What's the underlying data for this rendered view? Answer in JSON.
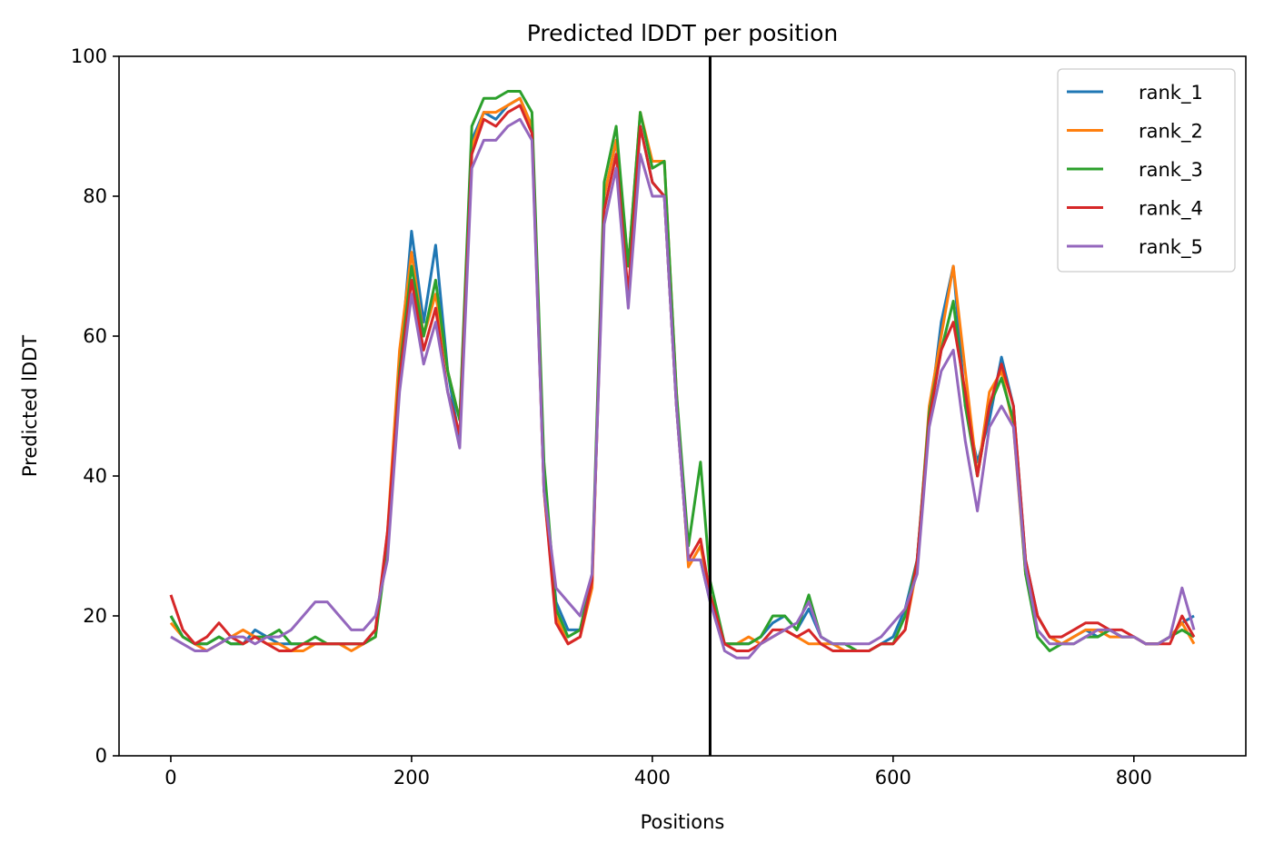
{
  "chart_data": {
    "type": "line",
    "title": "Predicted lDDT per position",
    "xlabel": "Positions",
    "ylabel": "Predicted lDDT",
    "xlim": [
      -43,
      893
    ],
    "ylim": [
      0,
      100
    ],
    "xticks": [
      0,
      200,
      400,
      600,
      800
    ],
    "yticks": [
      0,
      20,
      40,
      60,
      80,
      100
    ],
    "grid": false,
    "legend_position": "top-right",
    "vline_x": 448,
    "vline_color": "#000000",
    "x": [
      0,
      10,
      20,
      30,
      40,
      50,
      60,
      70,
      80,
      90,
      100,
      110,
      120,
      130,
      140,
      150,
      160,
      170,
      180,
      190,
      200,
      210,
      220,
      230,
      240,
      250,
      260,
      270,
      280,
      290,
      300,
      310,
      320,
      330,
      340,
      350,
      360,
      370,
      380,
      390,
      400,
      410,
      420,
      430,
      440,
      448,
      460,
      470,
      480,
      490,
      500,
      510,
      520,
      530,
      540,
      550,
      560,
      570,
      580,
      590,
      600,
      610,
      620,
      630,
      640,
      650,
      660,
      670,
      680,
      690,
      700,
      710,
      720,
      730,
      740,
      750,
      760,
      770,
      780,
      790,
      800,
      810,
      820,
      830,
      840,
      850
    ],
    "series": [
      {
        "name": "rank_1",
        "color": "#1f77b4",
        "values": [
          20,
          17,
          16,
          16,
          17,
          16,
          16,
          18,
          17,
          16,
          16,
          16,
          16,
          16,
          16,
          16,
          16,
          18,
          30,
          55,
          75,
          62,
          73,
          55,
          45,
          88,
          92,
          91,
          93,
          94,
          90,
          40,
          22,
          18,
          18,
          25,
          80,
          88,
          65,
          90,
          82,
          80,
          50,
          28,
          28,
          22,
          16,
          16,
          16,
          17,
          19,
          20,
          18,
          21,
          17,
          16,
          16,
          15,
          15,
          16,
          17,
          21,
          28,
          48,
          62,
          70,
          50,
          42,
          48,
          57,
          50,
          28,
          20,
          17,
          16,
          17,
          18,
          17,
          18,
          17,
          17,
          16,
          16,
          17,
          19,
          20
        ]
      },
      {
        "name": "rank_2",
        "color": "#ff7f0e",
        "values": [
          19,
          17,
          16,
          15,
          16,
          17,
          18,
          17,
          16,
          16,
          15,
          15,
          16,
          16,
          16,
          15,
          16,
          17,
          32,
          58,
          72,
          60,
          66,
          55,
          48,
          87,
          92,
          92,
          93,
          94,
          90,
          38,
          20,
          16,
          17,
          24,
          80,
          88,
          70,
          92,
          85,
          85,
          52,
          27,
          30,
          23,
          16,
          16,
          17,
          16,
          17,
          18,
          17,
          16,
          16,
          16,
          15,
          15,
          15,
          16,
          16,
          18,
          27,
          50,
          60,
          70,
          55,
          40,
          52,
          55,
          47,
          26,
          20,
          17,
          16,
          17,
          18,
          18,
          17,
          17,
          17,
          16,
          16,
          17,
          19,
          16
        ]
      },
      {
        "name": "rank_3",
        "color": "#2ca02c",
        "values": [
          20,
          17,
          16,
          16,
          17,
          16,
          16,
          17,
          17,
          18,
          16,
          16,
          17,
          16,
          16,
          16,
          16,
          17,
          30,
          55,
          70,
          60,
          68,
          55,
          48,
          90,
          94,
          94,
          95,
          95,
          92,
          42,
          21,
          17,
          18,
          26,
          82,
          90,
          70,
          92,
          84,
          85,
          52,
          30,
          42,
          25,
          16,
          16,
          16,
          17,
          20,
          20,
          18,
          23,
          17,
          16,
          16,
          15,
          15,
          16,
          16,
          20,
          28,
          49,
          58,
          65,
          50,
          40,
          50,
          54,
          48,
          26,
          17,
          15,
          16,
          16,
          17,
          17,
          18,
          17,
          17,
          16,
          16,
          17,
          18,
          17
        ]
      },
      {
        "name": "rank_4",
        "color": "#d62728",
        "values": [
          23,
          18,
          16,
          17,
          19,
          17,
          16,
          17,
          16,
          15,
          15,
          16,
          16,
          16,
          16,
          16,
          16,
          18,
          32,
          54,
          68,
          58,
          64,
          52,
          46,
          86,
          91,
          90,
          92,
          93,
          89,
          38,
          19,
          16,
          17,
          25,
          78,
          86,
          66,
          90,
          82,
          80,
          50,
          28,
          31,
          23,
          16,
          15,
          15,
          16,
          18,
          18,
          17,
          18,
          16,
          15,
          15,
          15,
          15,
          16,
          16,
          18,
          28,
          48,
          58,
          62,
          52,
          40,
          50,
          56,
          50,
          28,
          20,
          17,
          17,
          18,
          19,
          19,
          18,
          18,
          17,
          16,
          16,
          16,
          20,
          17
        ]
      },
      {
        "name": "rank_5",
        "color": "#9467bd",
        "values": [
          17,
          16,
          15,
          15,
          16,
          17,
          17,
          16,
          17,
          17,
          18,
          20,
          22,
          22,
          20,
          18,
          18,
          20,
          28,
          52,
          66,
          56,
          62,
          52,
          44,
          84,
          88,
          88,
          90,
          91,
          88,
          38,
          24,
          22,
          20,
          26,
          76,
          84,
          64,
          86,
          80,
          80,
          50,
          28,
          28,
          22,
          15,
          14,
          14,
          16,
          17,
          18,
          19,
          22,
          17,
          16,
          16,
          16,
          16,
          17,
          19,
          21,
          26,
          47,
          55,
          58,
          45,
          35,
          47,
          50,
          47,
          27,
          18,
          16,
          16,
          16,
          17,
          18,
          18,
          17,
          17,
          16,
          16,
          17,
          24,
          18
        ]
      }
    ]
  }
}
